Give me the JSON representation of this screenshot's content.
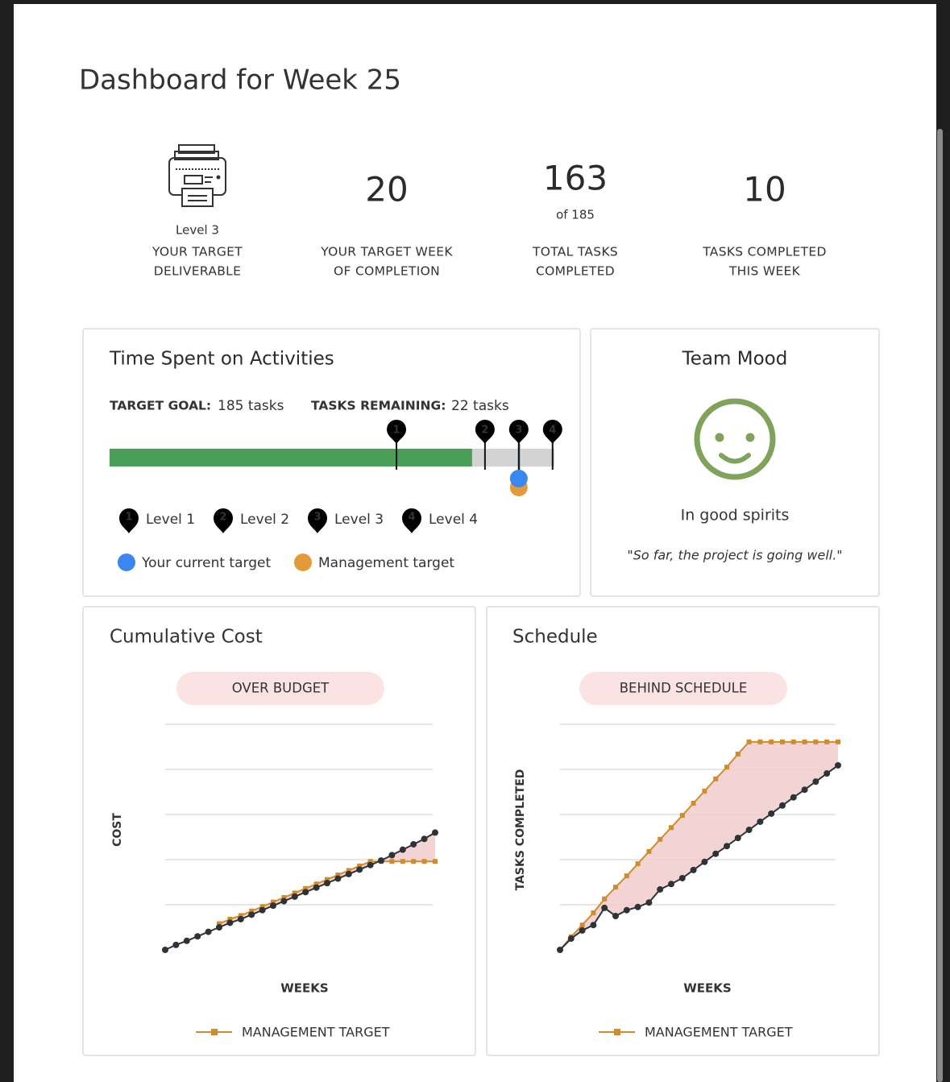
{
  "header": {
    "title": "Dashboard for Week 25"
  },
  "stats": [
    {
      "caption": "Level 3",
      "label_lines": [
        "YOUR TARGET",
        "DELIVERABLE"
      ]
    },
    {
      "value": 20,
      "label_lines": [
        "YOUR TARGET WEEK",
        "OF COMPLETION"
      ]
    },
    {
      "value": 163,
      "sub": "of 185",
      "label_lines": [
        "TOTAL TASKS",
        "COMPLETED"
      ]
    },
    {
      "value": 10,
      "label_lines": [
        "TASKS COMPLETED",
        "THIS WEEK"
      ]
    }
  ],
  "time_spent": {
    "title": "Time Spent on Activities",
    "goal_label": "TARGET GOAL:",
    "goal_text": "185 tasks",
    "remaining_label": "TASKS REMAINING:",
    "remaining_text": "22 tasks",
    "progress": {
      "xlim": [
        0,
        100
      ],
      "completed": 81.5,
      "color": "#4a9e57",
      "track_color": "#d3d3d3",
      "current_target": 92,
      "management_target": 92
    },
    "levels": [
      {
        "marker": "1",
        "name": "Level 1",
        "position": 64.5
      },
      {
        "marker": "2",
        "name": "Level 2",
        "position": 84.4
      },
      {
        "marker": "3",
        "name": "Level 3",
        "position": 92
      },
      {
        "marker": "4",
        "name": "Level 4",
        "position": 99.6
      }
    ],
    "targets": [
      {
        "name": "Your current target",
        "color": "#3b86f0"
      },
      {
        "name": "Management target",
        "color": "#e39b3a"
      }
    ]
  },
  "team_mood": {
    "title": "Team Mood",
    "status": "In good spirits",
    "quote": "\"So far, the project is going well.\"",
    "color": "#7fa35a"
  },
  "chart_data": [
    {
      "type": "line",
      "title": "Cumulative Cost",
      "badge": "OVER BUDGET",
      "ylabel": "COST",
      "xlabel": "WEEKS",
      "ylim": [
        0,
        5
      ],
      "yticks": [
        1,
        2,
        3,
        4,
        5
      ],
      "grid": true,
      "fill_color": "#f1cccc",
      "series": [
        {
          "color": "#2e3338",
          "values": [
            0,
            0.11,
            0.2,
            0.3,
            0.4,
            0.5,
            0.6,
            0.68,
            0.78,
            0.88,
            0.98,
            1.08,
            1.18,
            1.28,
            1.38,
            1.48,
            1.58,
            1.68,
            1.78,
            1.88,
            1.98,
            2.1,
            2.22,
            2.34,
            2.46,
            2.6
          ]
        },
        {
          "name": "MANAGEMENT TARGET",
          "color": "#d18a2c",
          "values": [
            null,
            null,
            null,
            null,
            null,
            0.58,
            0.68,
            0.76,
            0.86,
            0.96,
            1.06,
            1.16,
            1.26,
            1.36,
            1.46,
            1.56,
            1.66,
            1.76,
            1.86,
            1.96,
            1.96,
            1.96,
            1.96,
            1.96,
            1.96,
            1.96
          ]
        }
      ]
    },
    {
      "type": "line",
      "title": "Schedule",
      "badge": "BEHIND SCHEDULE",
      "ylabel": "TASKS COMPLETED",
      "xlabel": "WEEKS",
      "ylim": [
        0,
        5
      ],
      "yticks": [
        1,
        2,
        3,
        4,
        5
      ],
      "grid": true,
      "fill_color": "#f1cccc",
      "series": [
        {
          "color": "#2e3338",
          "values": [
            0,
            0.25,
            0.43,
            0.55,
            0.93,
            0.75,
            0.88,
            0.95,
            1.05,
            1.34,
            1.46,
            1.59,
            1.77,
            1.95,
            2.13,
            2.3,
            2.48,
            2.66,
            2.84,
            3.02,
            3.2,
            3.38,
            3.55,
            3.73,
            3.91,
            4.09
          ]
        },
        {
          "name": "MANAGEMENT TARGET",
          "color": "#d18a2c",
          "values": [
            0,
            0.29,
            0.55,
            0.82,
            1.13,
            1.39,
            1.64,
            1.91,
            2.18,
            2.45,
            2.71,
            2.98,
            3.25,
            3.52,
            3.79,
            4.05,
            4.34,
            4.61,
            4.61,
            4.61,
            4.61,
            4.61,
            4.61,
            4.61,
            4.61,
            4.61
          ]
        }
      ]
    }
  ]
}
